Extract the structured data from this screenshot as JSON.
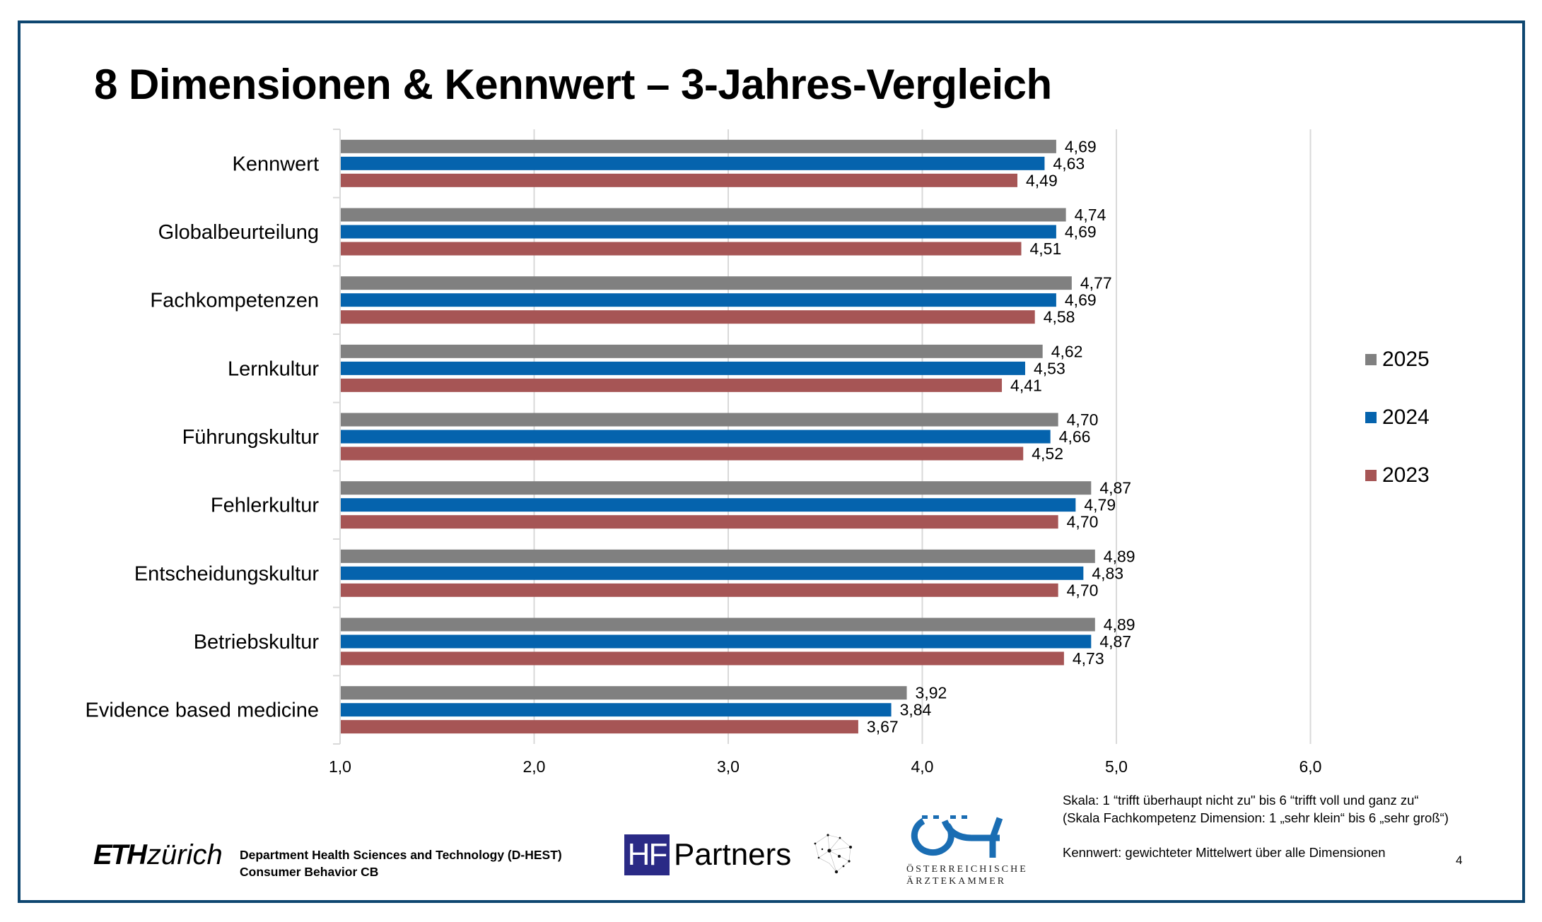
{
  "title": "8 Dimensionen & Kennwert – 3-Jahres-Vergleich",
  "chart_data": {
    "type": "bar",
    "orientation": "horizontal",
    "title": "8 Dimensionen & Kennwert – 3-Jahres-Vergleich",
    "xlabel": "",
    "ylabel": "",
    "xlim": [
      1.0,
      6.0
    ],
    "x_ticks": [
      "1,0",
      "2,0",
      "3,0",
      "4,0",
      "5,0",
      "6,0"
    ],
    "x_tick_values": [
      1,
      2,
      3,
      4,
      5,
      6
    ],
    "grid": "vertical",
    "legend_position": "right",
    "categories": [
      "Kennwert",
      "Globalbeurteilung",
      "Fachkompetenzen",
      "Lernkultur",
      "Führungskultur",
      "Fehlerkultur",
      "Entscheidungskultur",
      "Betriebskultur",
      "Evidence based medicine"
    ],
    "series": [
      {
        "name": "2025",
        "color": "#808080",
        "values": [
          4.69,
          4.74,
          4.77,
          4.62,
          4.7,
          4.87,
          4.89,
          4.89,
          3.92
        ],
        "labels": [
          "4,69",
          "4,74",
          "4,77",
          "4,62",
          "4,70",
          "4,87",
          "4,89",
          "4,89",
          "3,92"
        ]
      },
      {
        "name": "2024",
        "color": "#0563ad",
        "values": [
          4.63,
          4.69,
          4.69,
          4.53,
          4.66,
          4.79,
          4.83,
          4.87,
          3.84
        ],
        "labels": [
          "4,63",
          "4,69",
          "4,69",
          "4,53",
          "4,66",
          "4,79",
          "4,83",
          "4,87",
          "3,84"
        ]
      },
      {
        "name": "2023",
        "color": "#a65555",
        "values": [
          4.49,
          4.51,
          4.58,
          4.41,
          4.52,
          4.7,
          4.7,
          4.73,
          3.67
        ],
        "labels": [
          "4,49",
          "4,51",
          "4,58",
          "4,41",
          "4,52",
          "4,70",
          "4,70",
          "4,73",
          "3,67"
        ]
      }
    ]
  },
  "notes": {
    "scale_line1": "Skala: 1 “trifft überhaupt nicht zu\" bis 6 “trifft voll und ganz zu“",
    "scale_line2": "(Skala Fachkompetenz Dimension: 1 „sehr klein“ bis 6 „sehr groß“)",
    "kennwert": "Kennwert: gewichteter Mittelwert über alle Dimensionen"
  },
  "page_number": "4",
  "footer": {
    "eth_logo_bold": "ETH",
    "eth_logo_light": "zürich",
    "department_line1": "Department Health Sciences and Technology (D-HEST)",
    "department_line2": "Consumer Behavior CB",
    "hf_box": "HF",
    "hf_text": "Partners",
    "oak_line1": "ÖSTERREICHISCHE",
    "oak_line2": "ÄRZTEKAMMER"
  },
  "colors": {
    "frame": "#0e4670",
    "gridline": "#d9d9d9"
  }
}
